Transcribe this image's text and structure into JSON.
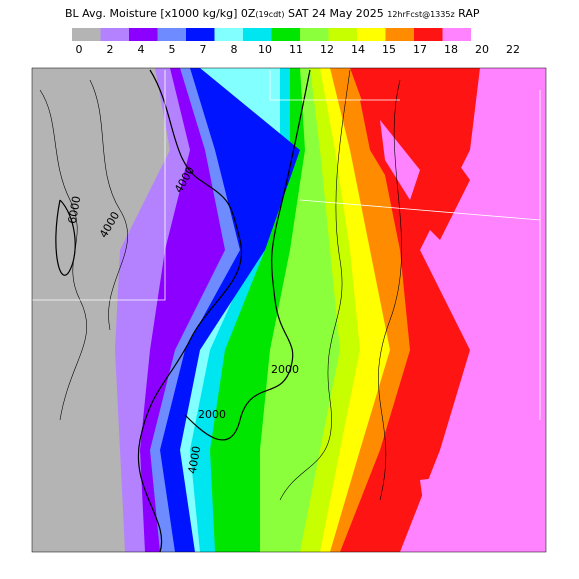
{
  "header": {
    "title_main": "BL Avg. Moisture [x1000 kg/kg] 0Z",
    "title_time": "(19cdt)",
    "title_date": " SAT 24 May 2025 ",
    "title_fcst": "12hrFcst@1335z",
    "title_model": " RAP"
  },
  "legend": {
    "labels": [
      0,
      2,
      4,
      5,
      7,
      8,
      10,
      11,
      12,
      14,
      15,
      17,
      18,
      20,
      22
    ],
    "colors": [
      "#b4b4b4",
      "#b482ff",
      "#8c00ff",
      "#6e8cff",
      "#0014ff",
      "#82ffff",
      "#00e6f0",
      "#00e600",
      "#8cff3c",
      "#c8ff00",
      "#ffff00",
      "#ff8c00",
      "#ff1414",
      "#ff82ff"
    ]
  },
  "contour_labels": [
    "6000",
    "4000",
    "4000",
    "2000",
    "2000",
    "4000"
  ]
}
